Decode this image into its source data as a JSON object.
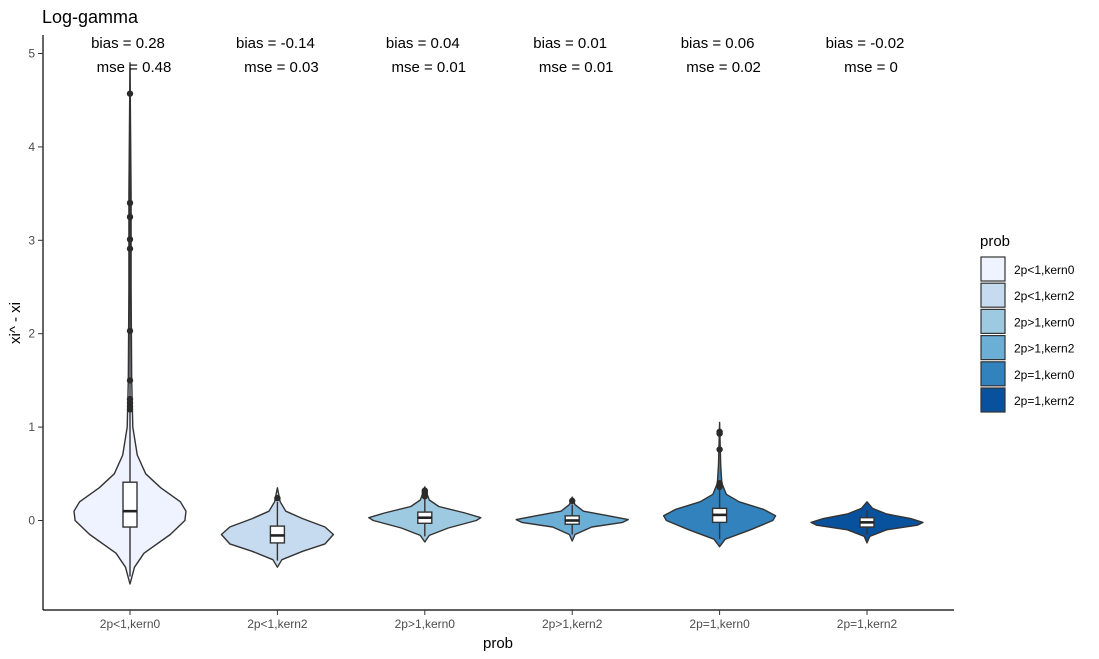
{
  "chart_data": {
    "type": "violin",
    "title": "Log-gamma",
    "xlabel": "prob",
    "ylabel": "xi^ - xi",
    "ylim": [
      -0.95,
      5.15
    ],
    "yticks": [
      0,
      1,
      2,
      3,
      4,
      5
    ],
    "categories": [
      "2p<1,kern0",
      "2p<1,kern2",
      "2p>1,kern0",
      "2p>1,kern2",
      "2p=1,kern0",
      "2p=1,kern2"
    ],
    "colors": [
      "#eff3ff",
      "#c6dbef",
      "#9ecae1",
      "#6baed6",
      "#3182bd",
      "#08519c"
    ],
    "legend": {
      "title": "prob",
      "position": "right"
    },
    "series": [
      {
        "name": "2p<1,kern0",
        "bias": "bias = 0.28",
        "mse": "mse = 0.48",
        "box": {
          "q1": -0.07,
          "median": 0.1,
          "q3": 0.41,
          "whisker_low": -0.6,
          "whisker_high": 4.85
        },
        "outliers": [
          4.57,
          3.4,
          3.25,
          3.01,
          2.91,
          2.03,
          1.5,
          1.3,
          1.26,
          1.22,
          1.19
        ],
        "violin": [
          [
            -0.68,
            0.0
          ],
          [
            -0.5,
            0.08
          ],
          [
            -0.35,
            0.25
          ],
          [
            -0.15,
            0.72
          ],
          [
            0.0,
            0.98
          ],
          [
            0.1,
            1.0
          ],
          [
            0.2,
            0.9
          ],
          [
            0.35,
            0.55
          ],
          [
            0.5,
            0.28
          ],
          [
            0.7,
            0.13
          ],
          [
            1.0,
            0.05
          ],
          [
            1.5,
            0.03
          ],
          [
            2.5,
            0.02
          ],
          [
            3.5,
            0.02
          ],
          [
            4.9,
            0.0
          ]
        ]
      },
      {
        "name": "2p<1,kern2",
        "bias": "bias = -0.14",
        "mse": "mse = 0.03",
        "box": {
          "q1": -0.24,
          "median": -0.16,
          "q3": -0.06,
          "whisker_low": -0.43,
          "whisker_high": 0.2
        },
        "outliers": [
          0.24
        ],
        "violin": [
          [
            -0.5,
            0.0
          ],
          [
            -0.42,
            0.08
          ],
          [
            -0.33,
            0.45
          ],
          [
            -0.25,
            0.85
          ],
          [
            -0.15,
            1.0
          ],
          [
            -0.07,
            0.85
          ],
          [
            0.02,
            0.45
          ],
          [
            0.1,
            0.15
          ],
          [
            0.2,
            0.05
          ],
          [
            0.35,
            0.0
          ]
        ]
      },
      {
        "name": "2p>1,kern0",
        "bias": "bias = 0.04",
        "mse": "mse = 0.01",
        "box": {
          "q1": -0.03,
          "median": 0.03,
          "q3": 0.09,
          "whisker_low": -0.17,
          "whisker_high": 0.25
        },
        "outliers": [
          0.26,
          0.28,
          0.3,
          0.32
        ],
        "violin": [
          [
            -0.23,
            0.0
          ],
          [
            -0.16,
            0.08
          ],
          [
            -0.08,
            0.42
          ],
          [
            0.0,
            0.92
          ],
          [
            0.03,
            1.0
          ],
          [
            0.08,
            0.72
          ],
          [
            0.15,
            0.25
          ],
          [
            0.22,
            0.08
          ],
          [
            0.3,
            0.03
          ],
          [
            0.36,
            0.0
          ]
        ]
      },
      {
        "name": "2p>1,kern2",
        "bias": "bias = 0.01",
        "mse": "mse = 0.01",
        "box": {
          "q1": -0.04,
          "median": 0.0,
          "q3": 0.05,
          "whisker_low": -0.15,
          "whisker_high": 0.17
        },
        "outliers": [
          0.21
        ],
        "violin": [
          [
            -0.22,
            0.0
          ],
          [
            -0.15,
            0.05
          ],
          [
            -0.07,
            0.35
          ],
          [
            -0.02,
            0.9
          ],
          [
            0.01,
            1.0
          ],
          [
            0.05,
            0.65
          ],
          [
            0.1,
            0.2
          ],
          [
            0.17,
            0.05
          ],
          [
            0.25,
            0.0
          ]
        ]
      },
      {
        "name": "2p=1,kern0",
        "bias": "bias = 0.06",
        "mse": "mse = 0.02",
        "box": {
          "q1": -0.02,
          "median": 0.06,
          "q3": 0.13,
          "whisker_low": -0.2,
          "whisker_high": 0.33
        },
        "outliers": [
          0.95,
          0.93,
          0.76,
          0.4,
          0.36
        ],
        "violin": [
          [
            -0.28,
            0.0
          ],
          [
            -0.2,
            0.1
          ],
          [
            -0.1,
            0.55
          ],
          [
            0.0,
            0.95
          ],
          [
            0.05,
            1.0
          ],
          [
            0.12,
            0.78
          ],
          [
            0.2,
            0.35
          ],
          [
            0.28,
            0.12
          ],
          [
            0.4,
            0.04
          ],
          [
            0.6,
            0.02
          ],
          [
            0.8,
            0.01
          ],
          [
            1.05,
            0.0
          ]
        ]
      },
      {
        "name": "2p=1,kern2",
        "bias": "bias = -0.02",
        "mse": "mse = 0",
        "box": {
          "q1": -0.07,
          "median": -0.02,
          "q3": 0.03,
          "whisker_low": -0.15,
          "whisker_high": 0.11
        },
        "outliers": [],
        "violin": [
          [
            -0.24,
            0.0
          ],
          [
            -0.17,
            0.05
          ],
          [
            -0.1,
            0.35
          ],
          [
            -0.05,
            0.9
          ],
          [
            -0.02,
            1.0
          ],
          [
            0.02,
            0.78
          ],
          [
            0.07,
            0.35
          ],
          [
            0.13,
            0.1
          ],
          [
            0.2,
            0.0
          ]
        ]
      }
    ]
  }
}
